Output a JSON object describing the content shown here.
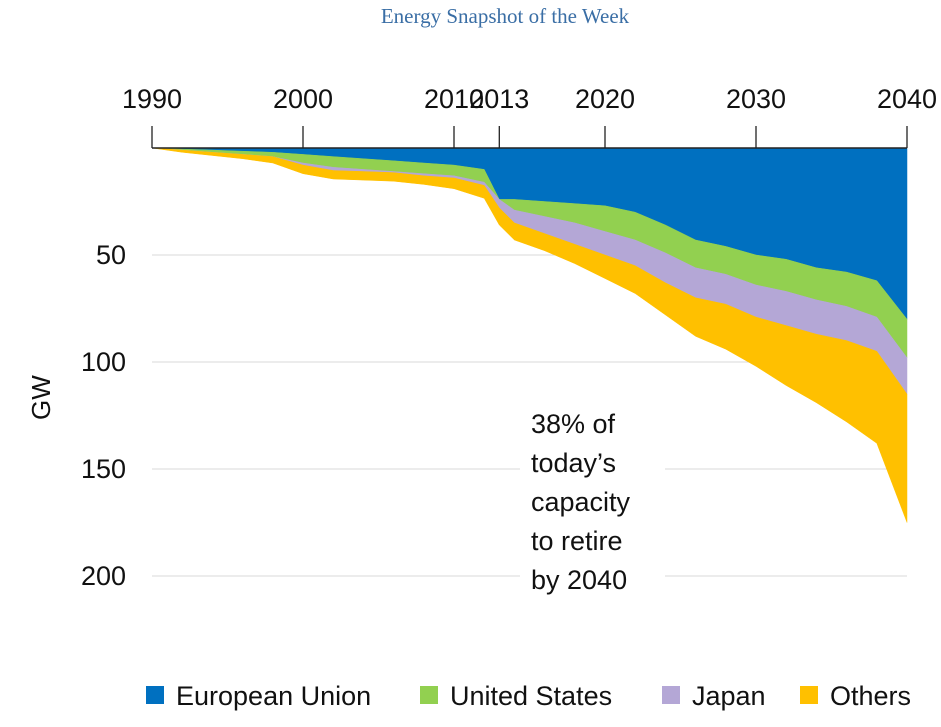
{
  "header": {
    "title": "Energy Snapshot of the Week"
  },
  "chart_data": {
    "type": "area",
    "stacked": true,
    "title": "",
    "xlabel": "",
    "ylabel": "GW",
    "x_axis_position": "top",
    "y_axis_inverted": true,
    "xlim": [
      1990,
      2040
    ],
    "ylim": [
      0,
      200
    ],
    "x_ticks": [
      1990,
      2000,
      2010,
      2013,
      2020,
      2030,
      2040
    ],
    "y_ticks": [
      50,
      100,
      150,
      200
    ],
    "grid": true,
    "legend_position": "bottom",
    "x": [
      1990,
      1992,
      1994,
      1996,
      1998,
      2000,
      2002,
      2004,
      2006,
      2008,
      2010,
      2012,
      2013,
      2014,
      2016,
      2018,
      2020,
      2022,
      2024,
      2026,
      2028,
      2030,
      2032,
      2034,
      2036,
      2038,
      2040
    ],
    "series": [
      {
        "name": "European Union",
        "color": "#0070C0",
        "values": [
          0,
          0.5,
          1,
          1.5,
          2,
          3,
          4,
          5,
          6,
          7,
          8,
          10,
          24,
          24,
          25,
          26,
          27,
          30,
          36,
          43,
          46,
          50,
          52,
          56,
          58,
          62,
          80
        ]
      },
      {
        "name": "United States",
        "color": "#92D050",
        "values": [
          0,
          0.5,
          1,
          1.5,
          2,
          4,
          5,
          5,
          5,
          5,
          5,
          6,
          0,
          5,
          7,
          9,
          12,
          13,
          13,
          13,
          13,
          14,
          15,
          15,
          16,
          17,
          18
        ]
      },
      {
        "name": "Japan",
        "color": "#B4A7D6",
        "values": [
          0,
          0,
          0,
          0,
          0,
          1,
          1.5,
          1,
          0.5,
          1,
          1,
          1.5,
          4,
          6,
          8,
          10,
          11,
          12,
          14,
          14,
          14,
          15,
          16,
          16,
          16,
          16,
          17
        ]
      },
      {
        "name": "Others",
        "color": "#FFC000",
        "values": [
          0,
          1,
          1.5,
          2,
          3,
          4,
          4,
          4,
          4,
          4,
          5,
          6,
          8,
          8,
          8,
          9,
          11,
          13,
          15,
          18,
          21,
          23,
          28,
          32,
          38,
          43,
          60
        ]
      }
    ],
    "annotation": [
      "38% of",
      "today’s",
      "capacity",
      "to retire",
      "by 2040"
    ]
  }
}
